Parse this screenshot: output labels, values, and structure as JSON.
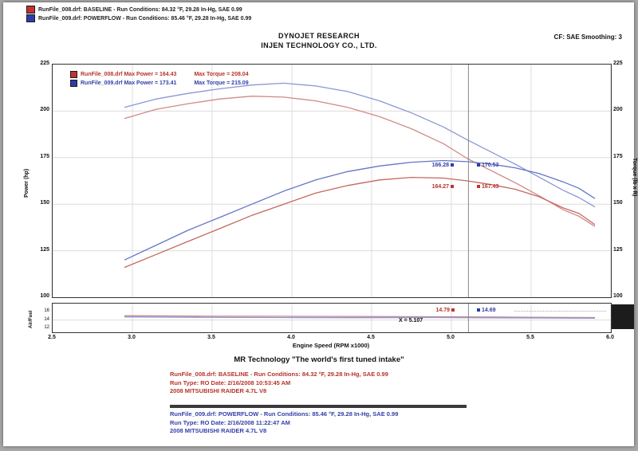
{
  "header": {
    "runs": [
      {
        "label": "RunFile_008.drf:  BASELINE  -  Run Conditions: 84.32 °F, 29.28 In-Hg, SAE 0.99"
      },
      {
        "label": "RunFile_009.drf:  POWERFLOW  -  Run Conditions: 85.46 °F, 29.28 In-Hg, SAE 0.99"
      }
    ],
    "cf_note": "CF: SAE   Smoothing: 3",
    "title_line1": "DYNOJET RESEARCH",
    "title_line2": "INJEN TECHNOLOGY CO., LTD."
  },
  "legend": {
    "rows": [
      {
        "file": "RunFile_008.drf",
        "max_power": "Max Power = 164.43",
        "max_torque": "Max Torque = 208.04"
      },
      {
        "file": "RunFile_009.drf",
        "max_power": "Max Power = 173.41",
        "max_torque": "Max Torque = 215.09"
      }
    ]
  },
  "cursor": {
    "x_label": "X = 5.107",
    "main": {
      "powerflow_left": "166.28",
      "powerflow_right": "170.53",
      "baseline_left": "164.27",
      "baseline_right": "167.43"
    },
    "afr": {
      "baseline": "14.79",
      "powerflow": "14.69"
    }
  },
  "chart_data": {
    "type": "line",
    "title": "DYNOJET RESEARCH - INJEN TECHNOLOGY CO., LTD.",
    "xlabel": "Engine Speed (RPM x1000)",
    "xlim": [
      2.5,
      6.0
    ],
    "x_ticks": [
      "2.5",
      "3.0",
      "3.5",
      "4.0",
      "4.5",
      "5.0",
      "5.5",
      "6.0"
    ],
    "cursor_x": 5.107,
    "legend_position": "top-left-inside",
    "grid": true,
    "panels": [
      {
        "name": "power_torque",
        "ylabel_left": "Power (hp)",
        "ylabel_right": "Torque (lb x ft)",
        "ylim": [
          100,
          225
        ],
        "y_ticks": [
          "225",
          "200",
          "175",
          "150",
          "125",
          "100"
        ],
        "y_grid": [
          125,
          150,
          175,
          200
        ],
        "series": [
          {
            "name": "BASELINE Torque (lb-ft)",
            "color": "#d08a84",
            "x": [
              2.95,
              3.15,
              3.35,
              3.55,
              3.75,
              3.95,
              4.15,
              4.35,
              4.55,
              4.75,
              4.95,
              5.1,
              5.25,
              5.4,
              5.55,
              5.7,
              5.8,
              5.9
            ],
            "values": [
              196,
              201,
              204,
              206.5,
              208,
              207.5,
              205.5,
              202,
              197,
              190.5,
              182.5,
              174.5,
              168,
              161.5,
              154.5,
              147,
              143.5,
              138
            ]
          },
          {
            "name": "POWERFLOW Torque (lb-ft)",
            "color": "#8a97d6",
            "x": [
              2.95,
              3.15,
              3.35,
              3.55,
              3.75,
              3.95,
              4.15,
              4.35,
              4.55,
              4.75,
              4.95,
              5.1,
              5.25,
              5.4,
              5.55,
              5.7,
              5.8,
              5.9
            ],
            "values": [
              202,
              206.5,
              209.5,
              212,
              214,
              215,
              213.5,
              210.5,
              205.5,
              199,
              191.5,
              184.5,
              178,
              171.5,
              164.5,
              157.5,
              153.5,
              148.5
            ]
          },
          {
            "name": "BASELINE Power (hp)",
            "color": "#c4675f",
            "x": [
              2.95,
              3.15,
              3.35,
              3.55,
              3.75,
              3.95,
              4.15,
              4.35,
              4.55,
              4.75,
              4.95,
              5.1,
              5.25,
              5.4,
              5.55,
              5.7,
              5.8,
              5.9
            ],
            "values": [
              116,
              123,
              130,
              137,
              144,
              150,
              156,
              160,
              163,
              164.4,
              164,
              162.5,
              160.5,
              158,
              154,
              148,
              145,
              139
            ]
          },
          {
            "name": "POWERFLOW Power (hp)",
            "color": "#6476c6",
            "x": [
              2.95,
              3.15,
              3.35,
              3.55,
              3.75,
              3.95,
              4.15,
              4.35,
              4.55,
              4.75,
              4.95,
              5.1,
              5.25,
              5.4,
              5.55,
              5.7,
              5.8,
              5.9
            ],
            "values": [
              120,
              128,
              136,
              143,
              150,
              157,
              163,
              167.5,
              170.5,
              172.5,
              173.4,
              172.8,
              171.5,
              169.5,
              166.5,
              162,
              158.5,
              153
            ]
          }
        ]
      },
      {
        "name": "air_fuel",
        "ylabel_left": "Air/Fuel",
        "ylim": [
          11,
          18
        ],
        "y_ticks": [
          "16",
          "14",
          "12"
        ],
        "y_grid": [
          14
        ],
        "series": [
          {
            "name": "BASELINE Air/Fuel",
            "color": "#d08a84",
            "x": [
              2.95,
              3.4,
              3.9,
              4.4,
              4.9,
              5.4,
              5.9
            ],
            "values": [
              15.05,
              14.95,
              14.9,
              14.85,
              14.8,
              14.7,
              14.6
            ]
          },
          {
            "name": "POWERFLOW Air/Fuel",
            "color": "#8a97d6",
            "x": [
              2.95,
              3.4,
              3.9,
              4.4,
              4.9,
              5.4,
              5.9
            ],
            "values": [
              14.75,
              14.65,
              14.6,
              14.55,
              14.6,
              14.5,
              14.45
            ]
          }
        ]
      }
    ]
  },
  "footer": {
    "tagline": "MR Technology \"The world's first tuned intake\"",
    "baseline": {
      "lines": [
        "RunFile_008.drf:  BASELINE  -  Run Conditions: 84.32 °F, 29.28 In-Hg, SAE 0.99",
        "Run Type: RO   Date: 2/16/2008 10:53:45 AM",
        "2008 MITSUBISHI RAIDER 4.7L V8"
      ]
    },
    "powerflow": {
      "lines": [
        "RunFile_009.drf:  POWERFLOW  -  Run Conditions: 85.46 °F, 29.28 In-Hg, SAE 0.99",
        "Run Type: RO   Date: 2/16/2008 11:22:47 AM",
        "2008 MITSUBISHI RAIDER 4.7L V8"
      ]
    }
  },
  "colors": {
    "baseline": "#c23430",
    "powerflow": "#2c3cae",
    "cursor_line": "#888888",
    "grid_line": "#dcdcdc"
  }
}
